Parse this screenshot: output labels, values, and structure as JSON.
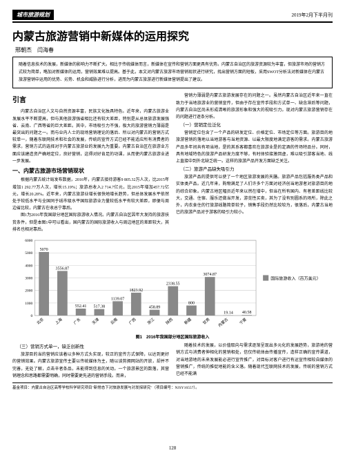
{
  "header": {
    "section_tag": "城市旅游规划",
    "date": "2019年2月下半月刊"
  },
  "title": "内蒙古旅游营销中新媒体的运用探究",
  "authors": "邢朝杰　闫海春",
  "abstract": "随着信息技术的发展，新媒体的影响力不断扩大。相比于传统媒体而言，新媒体在宣传和营销方面更具有优势。内蒙古自治区的旅游资源较为丰富，但旅游市场的营销方式较为简单，略加对新媒体的运用，营销效果难以提高。基于此，本文对内蒙古旅游市场营销现状进行研究，找出营销方面的短板，采用SWOT分析法对新媒体在内蒙古旅游营销中运用的优势、劣势、机会和威胁进行分析，进而为内蒙古旅游进行新媒体营销提出了建议。",
  "left_col": {
    "intro_heading": "引言",
    "intro_body": "内蒙古自治区人文与自然资源丰富，民族文化独具特色。近年来，内蒙古旅游业发展水平不断提高，但与其他旅游强省相比还有较大差距，特别是从总体旅游发展强省、云南、广西等省的巨大差距。其中，市场吸引力不强，极大的旅游营销力薄弱是最突出的问题之一。而与业内人士的现场营销理论的落后、所以对内蒙古的营销方式较单一，随着东联网技术和社会的发展，传统的宣传方式已经不能适应所有消费者的需求，营销方式的选择对于内蒙古旅游业的发展九为重要。内蒙古自治区在旅游业方面应该建造资产确地定位，良好营销，这得对好肯足的功课，从而使内蒙古旅游业进一步发展。",
    "h3_1": "一、内蒙古旅游市场营销现状",
    "p1": "根据内蒙古统计局发布数据，2016年，内蒙古接待游客9 805.32万人次，比2015年增加1 292.77万人次，增长15.19%；旅游总收入2 714.7亿元，比2015年增加457.72亿元，增长20.28%。近年来，内蒙古旅游业增长很快地增长趋势，但总体发展水平依然处于较低水平与全国同于线市级水平国际旅游业力量较低水平有较大差距，即便与周边省比较，内蒙古在收总宁靠后。",
    "p2": "图1为2016年我国部分地区国际旅游收入情况。内蒙古自治区因年大发持的旅游扶贫条件，但是本图1中可以看出，国内蒙古的国际旅游收入与周边地区的差距较大，其排名也相对靠后。"
  },
  "right_col": {
    "p0": "营销力薄弱是内蒙古旅游发展存在的问题之一。虽然内蒙古自治区近年来一直在致力于当地旅游业的营销宣传，但由于存在宣传手段和方式单一、缺念滞后等问题，内蒙古自治区尚未形成清晰的旅游形象和强大的视吸引力。现对内蒙古旅游营销存在的问题进行逐条分析。",
    "h4_1": "（一）营销定位泛化",
    "p1": "营销定位包含了一个产品的研发定位、价格定位、市场定位等方面。旅游目的地旅游营销的落地以当地游客与当地资源、以最大限度地满足游客的需求。内蒙古旅游产品多年间共有项当地，是的其系客都喜欢在旅游业是的定酒的传场特品分。同时，具有地域特色的旅游产品研发力度不够，有时体验接激回虚，难以吸引游客当地、线上直接中到外北缺乏统一。这样的旅游产品开发方面缺乏关注。",
    "h4_2": "（二）旅游产品缺失吸引力",
    "p2": "旅游产品的提供可以使了一个地区旅游发展的天膳。旅游产品包括服务类产品和实体类产品。近几年来，购物满足了人们许多个方面对经济创当地游者对旅游目的地的综合印象。内蒙古地区幅员近年来以然在增中，但当在所有国内、有者差距线比较大，交通、住宿、服乐还做当开发，游览性买卖，其为了没有别圆系的场所，除此之外，内衣食住的行旅游线路简单较子，销售手段仍然比较较为，很落后，内蒙古当地已的旅游产品对于游客的吸引力较小。"
  },
  "chart": {
    "type": "bar",
    "title": "图1　2016年我国部分地区国际旅游收入",
    "categories": [
      "北京",
      "上海",
      "广东",
      "天津",
      "云南",
      "广西",
      "浙江",
      "陕西",
      "新疆",
      "甘肃",
      "内蒙古",
      "宁夏"
    ],
    "values": [
      5070,
      3556.87,
      552.41,
      517.38,
      1139.07,
      1823.92,
      458.89,
      2338.55,
      800,
      3074.87,
      19.14,
      40.58
    ],
    "bar_color": "#888888",
    "background_color": "#ffffff",
    "grid_color": "#cccccc",
    "ylim": [
      0,
      6000
    ],
    "ytick_step": 1000,
    "ylabel_fontsize": 6,
    "bar_label_fontsize": 6,
    "legend_label": "国际旅游收入（百万美元）",
    "legend_marker_color": "#888888",
    "bar_width": 0.55
  },
  "bottom_cols": {
    "left": {
      "h4": "（三）营销方式单一，缺乏创新性",
      "body": "旅游目的当的营销应该着以多种方式头实现，较正的宣传方式保障，以达到更好的营销效果。内蒙古旅游宣传主要以传统媒体为主，随以谈剪拥网站的开放，却并不完善，无处了解，点击辛者条品，未能得到信息的关动。一个旅游景区的数落，其营销理念和思路都需要明确，同时需要更先进的营销手段。而来，"
    },
    "right": {
      "body": "随着技术的发展，以价值取向与需求逐渐呈现出多元化的发展趋势，旅游地的营销方式与消费者伸相化的营销相处，信仅传统体由传播宣传，造样正确的宣传渠道，对当地游地的未来发展能必进行宣传推广，对目标对客户进行有运宣传相较自媒体的营销推广，传统的推促地能的含义落。随着现代互联网技术的发展，传统的营销方式已经不能满"
    }
  },
  "footer": "基金项目：内蒙古自治区高等学校科学研究项目\"新常态下对旅游发展与对发探研究\"（项目编号：NJSY16557）。",
  "page_number": "128"
}
